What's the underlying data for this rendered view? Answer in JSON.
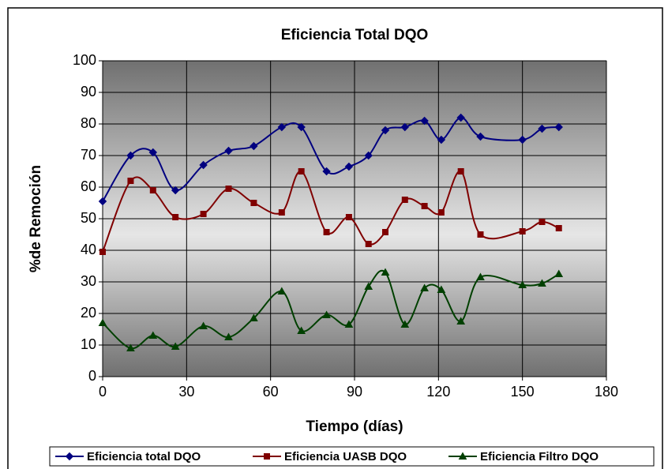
{
  "chart_data": {
    "type": "line",
    "title": "Eficiencia Total DQO",
    "x_label": "Tiempo (días)",
    "y_label": "%de Remoción",
    "x": [
      0,
      10,
      18,
      26,
      36,
      45,
      54,
      64,
      71,
      80,
      88,
      95,
      101,
      108,
      115,
      121,
      128,
      135,
      150,
      157,
      163
    ],
    "series": [
      {
        "name": "Eficiencia total DQO",
        "color": "#000080",
        "marker": "diamond",
        "values": [
          55.5,
          70,
          71,
          59,
          67,
          71.5,
          73,
          79,
          79,
          65,
          66.5,
          70,
          78,
          79,
          81,
          75,
          82,
          76,
          75,
          78.5,
          79
        ]
      },
      {
        "name": "Eficiencia UASB DQO",
        "color": "#800000",
        "marker": "square",
        "values": [
          39.5,
          62,
          59,
          50.5,
          51.5,
          59.5,
          55,
          52,
          65,
          45.75,
          50.5,
          42,
          45.75,
          56,
          54,
          52,
          65,
          45,
          46,
          49,
          47
        ]
      },
      {
        "name": "Eficiencia Filtro DQO",
        "color": "#004000",
        "marker": "triangle",
        "values": [
          17,
          9,
          13,
          9.5,
          16,
          12.5,
          18.5,
          27,
          14.5,
          19.5,
          16.5,
          28.5,
          33,
          16.5,
          28,
          27.5,
          17.5,
          31.5,
          29,
          29.5,
          32.5
        ]
      }
    ],
    "xlim": [
      0,
      180
    ],
    "xticks": [
      0,
      30,
      60,
      90,
      120,
      150,
      180
    ],
    "ylim": [
      0,
      100
    ],
    "yticks": [
      0,
      10,
      20,
      30,
      40,
      50,
      60,
      70,
      80,
      90,
      100
    ],
    "grid": true,
    "smooth": true,
    "legend": "bottom"
  }
}
